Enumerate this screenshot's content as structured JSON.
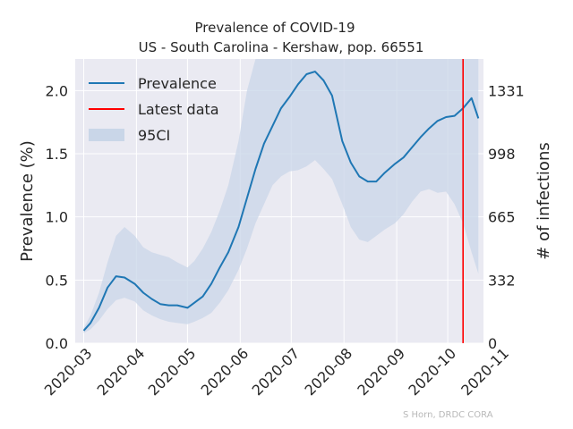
{
  "chart_data": {
    "type": "line",
    "title": "Prevalence of COVID-19",
    "subtitle": "US - South Carolina - Kershaw, pop. 66551",
    "ylabel": "Prevalence (%)",
    "y2label": "# of infections",
    "credit": "S Horn, DRDC CORA",
    "xlim": [
      "2020-02-25",
      "2020-10-22"
    ],
    "ylim": [
      0,
      2.25
    ],
    "x_tick_labels": [
      "2020-03",
      "2020-04",
      "2020-05",
      "2020-06",
      "2020-07",
      "2020-08",
      "2020-09",
      "2020-10",
      "2020-11"
    ],
    "x_tick_dates": [
      "2020-03-01",
      "2020-04-01",
      "2020-05-01",
      "2020-06-01",
      "2020-07-01",
      "2020-08-01",
      "2020-09-01",
      "2020-10-01",
      "2020-11-01"
    ],
    "y_ticks": [
      0.0,
      0.5,
      1.0,
      1.5,
      2.0
    ],
    "y_tick_labels": [
      "0.0",
      "0.5",
      "1.0",
      "1.5",
      "2.0"
    ],
    "y2_ticks": [
      0,
      332,
      665,
      998,
      1331
    ],
    "y2_tick_labels": [
      "0",
      "332",
      "665",
      "998",
      "1331"
    ],
    "grid": true,
    "legend_position": "top-left",
    "legend": [
      "Prevalence",
      "Latest data",
      "95CI"
    ],
    "colors": {
      "prevalence": "#1f77b4",
      "latest": "#ff0000",
      "ci": "#c9d6e8",
      "background": "#eaeaf2",
      "grid": "#ffffff"
    },
    "latest_data_date": "2020-10-10",
    "series": [
      {
        "name": "Prevalence",
        "x": [
          "2020-03-01",
          "2020-03-05",
          "2020-03-10",
          "2020-03-15",
          "2020-03-20",
          "2020-03-25",
          "2020-03-31",
          "2020-04-05",
          "2020-04-10",
          "2020-04-15",
          "2020-04-20",
          "2020-04-25",
          "2020-05-01",
          "2020-05-05",
          "2020-05-10",
          "2020-05-15",
          "2020-05-20",
          "2020-05-25",
          "2020-05-31",
          "2020-06-05",
          "2020-06-10",
          "2020-06-15",
          "2020-06-20",
          "2020-06-25",
          "2020-06-30",
          "2020-07-05",
          "2020-07-10",
          "2020-07-15",
          "2020-07-20",
          "2020-07-25",
          "2020-07-31",
          "2020-08-05",
          "2020-08-10",
          "2020-08-15",
          "2020-08-20",
          "2020-08-25",
          "2020-08-31",
          "2020-09-05",
          "2020-09-10",
          "2020-09-15",
          "2020-09-20",
          "2020-09-25",
          "2020-09-30",
          "2020-10-05",
          "2020-10-10",
          "2020-10-15",
          "2020-10-19"
        ],
        "values": [
          0.1,
          0.16,
          0.28,
          0.44,
          0.53,
          0.52,
          0.47,
          0.4,
          0.35,
          0.31,
          0.3,
          0.3,
          0.28,
          0.32,
          0.37,
          0.47,
          0.6,
          0.72,
          0.92,
          1.15,
          1.38,
          1.58,
          1.72,
          1.86,
          1.95,
          2.05,
          2.13,
          2.15,
          2.08,
          1.96,
          1.6,
          1.43,
          1.32,
          1.28,
          1.28,
          1.35,
          1.42,
          1.47,
          1.55,
          1.63,
          1.7,
          1.76,
          1.79,
          1.8,
          1.86,
          1.94,
          1.78
        ]
      },
      {
        "name": "95CI",
        "x": [
          "2020-03-01",
          "2020-03-05",
          "2020-03-10",
          "2020-03-15",
          "2020-03-20",
          "2020-03-25",
          "2020-03-31",
          "2020-04-05",
          "2020-04-10",
          "2020-04-15",
          "2020-04-20",
          "2020-04-25",
          "2020-05-01",
          "2020-05-05",
          "2020-05-10",
          "2020-05-15",
          "2020-05-20",
          "2020-05-25",
          "2020-05-31",
          "2020-06-05",
          "2020-06-10",
          "2020-06-15",
          "2020-06-20",
          "2020-06-25",
          "2020-06-30",
          "2020-07-05",
          "2020-07-10",
          "2020-07-15",
          "2020-07-20",
          "2020-07-25",
          "2020-07-31",
          "2020-08-05",
          "2020-08-10",
          "2020-08-15",
          "2020-08-20",
          "2020-08-25",
          "2020-08-31",
          "2020-09-05",
          "2020-09-10",
          "2020-09-15",
          "2020-09-20",
          "2020-09-25",
          "2020-09-30",
          "2020-10-05",
          "2020-10-10",
          "2020-10-15",
          "2020-10-19"
        ],
        "lower": [
          0.08,
          0.11,
          0.18,
          0.27,
          0.34,
          0.36,
          0.33,
          0.26,
          0.22,
          0.19,
          0.17,
          0.16,
          0.15,
          0.17,
          0.2,
          0.24,
          0.32,
          0.42,
          0.58,
          0.75,
          0.95,
          1.1,
          1.25,
          1.32,
          1.36,
          1.37,
          1.4,
          1.45,
          1.38,
          1.3,
          1.1,
          0.92,
          0.82,
          0.8,
          0.85,
          0.9,
          0.95,
          1.02,
          1.12,
          1.2,
          1.22,
          1.19,
          1.2,
          1.1,
          0.95,
          0.72,
          0.55
        ],
        "upper": [
          0.12,
          0.22,
          0.4,
          0.64,
          0.85,
          0.92,
          0.85,
          0.76,
          0.72,
          0.7,
          0.68,
          0.64,
          0.6,
          0.65,
          0.75,
          0.88,
          1.05,
          1.25,
          1.6,
          2.0,
          2.25,
          2.25,
          2.25,
          2.25,
          2.25,
          2.25,
          2.25,
          2.25,
          2.25,
          2.25,
          2.25,
          2.25,
          2.25,
          2.25,
          2.25,
          2.25,
          2.25,
          2.25,
          2.25,
          2.25,
          2.25,
          2.25,
          2.25,
          2.25,
          2.25,
          2.25,
          2.25
        ]
      }
    ]
  }
}
